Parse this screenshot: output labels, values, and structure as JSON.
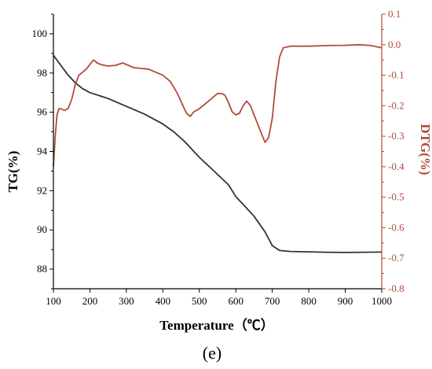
{
  "panel_label": "(e)",
  "chart_data": {
    "type": "line",
    "xlabel": "Temperature（℃）",
    "ylabel_left": "TG(%)",
    "ylabel_right": "DTG(%)",
    "xlim": [
      100,
      1000
    ],
    "ylim_left": [
      87,
      101
    ],
    "ylim_right": [
      -0.8,
      0.1
    ],
    "x_ticks": [
      100,
      200,
      300,
      400,
      500,
      600,
      700,
      800,
      900,
      1000
    ],
    "y_left_ticks": [
      88,
      90,
      92,
      94,
      96,
      98,
      100
    ],
    "y_right_ticks": [
      "0.1",
      "0.0",
      "-0.1",
      "-0.2",
      "-0.3",
      "-0.4",
      "-0.5",
      "-0.6",
      "-0.7",
      "-0.8"
    ],
    "colors": {
      "tg": "#333333",
      "dtg": "#b24a3a",
      "right_axis": "#b24a3a",
      "left_axis": "#000000"
    },
    "series": [
      {
        "axis": "left",
        "x": [
          100,
          120,
          140,
          160,
          180,
          200,
          250,
          300,
          350,
          400,
          430,
          460,
          500,
          540,
          580,
          600,
          620,
          650,
          680,
          700,
          720,
          750,
          800,
          850,
          900,
          950,
          1000
        ],
        "values": [
          98.9,
          98.4,
          97.9,
          97.5,
          97.2,
          97.0,
          96.7,
          96.3,
          95.9,
          95.4,
          95.0,
          94.5,
          93.7,
          93.0,
          92.3,
          91.7,
          91.3,
          90.7,
          89.9,
          89.2,
          88.95,
          88.9,
          88.88,
          88.86,
          88.85,
          88.86,
          88.87
        ]
      },
      {
        "axis": "right",
        "x": [
          100,
          105,
          110,
          115,
          120,
          130,
          140,
          150,
          160,
          170,
          180,
          190,
          200,
          210,
          220,
          230,
          240,
          250,
          270,
          290,
          300,
          320,
          340,
          360,
          380,
          400,
          420,
          440,
          455,
          465,
          475,
          485,
          500,
          520,
          540,
          550,
          560,
          570,
          580,
          590,
          600,
          610,
          620,
          630,
          640,
          650,
          660,
          670,
          680,
          690,
          700,
          710,
          720,
          730,
          750,
          800,
          850,
          900,
          940,
          970,
          1000
        ],
        "values": [
          -0.4,
          -0.3,
          -0.23,
          -0.21,
          -0.21,
          -0.215,
          -0.21,
          -0.18,
          -0.13,
          -0.1,
          -0.09,
          -0.08,
          -0.065,
          -0.05,
          -0.06,
          -0.065,
          -0.068,
          -0.07,
          -0.068,
          -0.06,
          -0.065,
          -0.075,
          -0.078,
          -0.08,
          -0.09,
          -0.1,
          -0.12,
          -0.16,
          -0.2,
          -0.225,
          -0.235,
          -0.22,
          -0.21,
          -0.19,
          -0.17,
          -0.16,
          -0.16,
          -0.165,
          -0.19,
          -0.22,
          -0.23,
          -0.225,
          -0.2,
          -0.185,
          -0.2,
          -0.23,
          -0.26,
          -0.29,
          -0.32,
          -0.305,
          -0.24,
          -0.12,
          -0.04,
          -0.01,
          -0.005,
          -0.005,
          -0.003,
          -0.002,
          0.0,
          -0.003,
          -0.01
        ]
      }
    ]
  }
}
